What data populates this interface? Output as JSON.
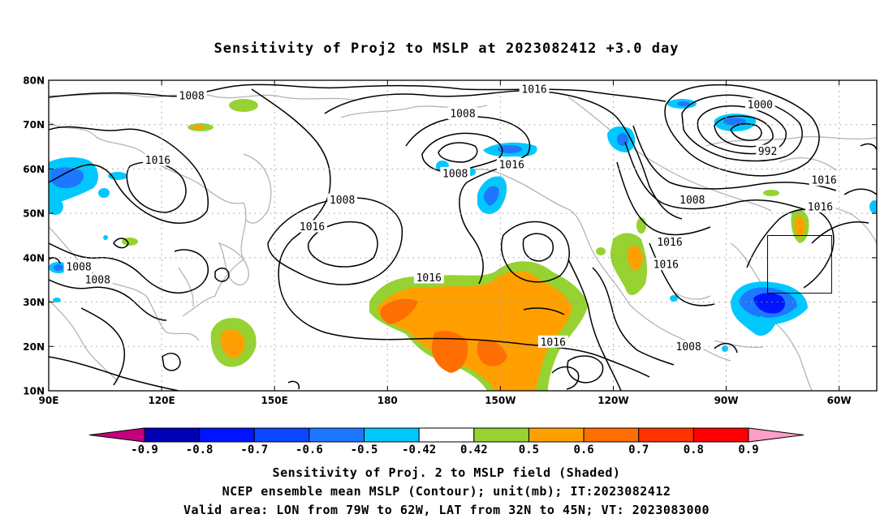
{
  "chart_data": {
    "type": "heatmap",
    "title": "Sensitivity of Proj2 to MSLP at 2023082412 +3.0 day",
    "map": {
      "lon_range_deg_east": [
        90,
        310
      ],
      "lat_range": [
        10,
        80
      ],
      "x_ticks": [
        {
          "lon": 90,
          "label": "90E"
        },
        {
          "lon": 120,
          "label": "120E"
        },
        {
          "lon": 150,
          "label": "150E"
        },
        {
          "lon": 180,
          "label": "180"
        },
        {
          "lon": 210,
          "label": "150W"
        },
        {
          "lon": 240,
          "label": "120W"
        },
        {
          "lon": 270,
          "label": "90W"
        },
        {
          "lon": 300,
          "label": "60W"
        }
      ],
      "y_ticks": [
        {
          "lat": 10,
          "label": "10N"
        },
        {
          "lat": 20,
          "label": "20N"
        },
        {
          "lat": 30,
          "label": "30N"
        },
        {
          "lat": 40,
          "label": "40N"
        },
        {
          "lat": 50,
          "label": "50N"
        },
        {
          "lat": 60,
          "label": "60N"
        },
        {
          "lat": 70,
          "label": "70N"
        },
        {
          "lat": 80,
          "label": "80N"
        }
      ],
      "grid": "dotted"
    },
    "valid_box": {
      "lon_west": 281,
      "lon_east": 298,
      "lat_south": 32,
      "lat_north": 45
    },
    "contour_labels": [
      {
        "text": "1008",
        "lon": 128,
        "lat": 76.5
      },
      {
        "text": "1016",
        "lon": 219,
        "lat": 78
      },
      {
        "text": "1008",
        "lon": 200,
        "lat": 72.5
      },
      {
        "text": "1000",
        "lon": 279,
        "lat": 74.5
      },
      {
        "text": "992",
        "lon": 281,
        "lat": 64
      },
      {
        "text": "1016",
        "lon": 119,
        "lat": 62
      },
      {
        "text": "1008",
        "lon": 198,
        "lat": 59
      },
      {
        "text": "1016",
        "lon": 213,
        "lat": 61
      },
      {
        "text": "1016",
        "lon": 296,
        "lat": 57.5
      },
      {
        "text": "1008",
        "lon": 168,
        "lat": 53
      },
      {
        "text": "1008",
        "lon": 261,
        "lat": 53
      },
      {
        "text": "1016",
        "lon": 295,
        "lat": 51.5
      },
      {
        "text": "1016",
        "lon": 160,
        "lat": 47
      },
      {
        "text": "1016",
        "lon": 255,
        "lat": 43.5
      },
      {
        "text": "1008",
        "lon": 98,
        "lat": 38
      },
      {
        "text": "1016",
        "lon": 254,
        "lat": 38.5
      },
      {
        "text": "1008",
        "lon": 103,
        "lat": 35
      },
      {
        "text": "1016",
        "lon": 191,
        "lat": 35.5
      },
      {
        "text": "1016",
        "lon": 224,
        "lat": 21
      },
      {
        "text": "1008",
        "lon": 260,
        "lat": 20
      }
    ],
    "colorbar": {
      "levels": [
        "-0.9",
        "-0.8",
        "-0.7",
        "-0.6",
        "-0.5",
        "-0.42",
        "0.42",
        "0.5",
        "0.6",
        "0.7",
        "0.8",
        "0.9"
      ],
      "colors": [
        "#c4007c",
        "#0000b4",
        "#0014ff",
        "#0a46ff",
        "#1e78ff",
        "#00c8ff",
        "#ffffff",
        "#96d232",
        "#ffa000",
        "#ff6e00",
        "#ff3200",
        "#ff0000",
        "#ff9fc8"
      ]
    },
    "footer": [
      "Sensitivity of Proj. 2 to MSLP field (Shaded)",
      "NCEP ensemble mean MSLP (Contour); unit(mb); IT:2023082412",
      "Valid area: LON from 79W to 62W, LAT from 32N to 45N; VT: 2023083000"
    ]
  }
}
